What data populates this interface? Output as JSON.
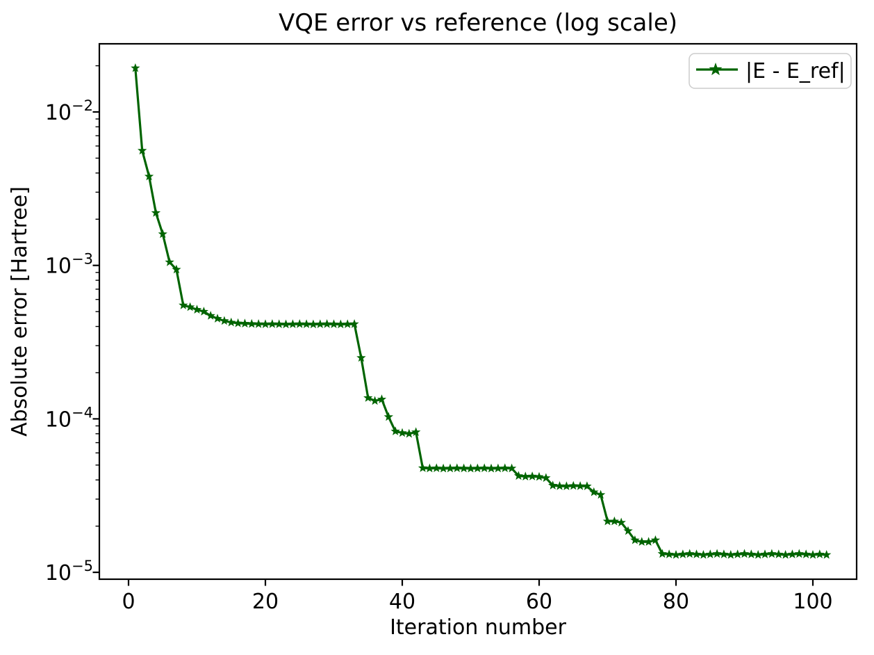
{
  "title": "VQE error vs reference (log scale)",
  "legend": {
    "label": "|E - E_ref|",
    "position": "upper right"
  },
  "axes": {
    "xlabel": "Iteration number",
    "ylabel": "Absolute error [Hartree]",
    "x_ticks": [
      0,
      20,
      40,
      60,
      80,
      100
    ],
    "y_ticks": [
      {
        "base": "10",
        "exp": "−2",
        "value": 0.01
      },
      {
        "base": "10",
        "exp": "−3",
        "value": 0.001
      },
      {
        "base": "10",
        "exp": "−4",
        "value": 0.0001
      },
      {
        "base": "10",
        "exp": "−5",
        "value": 1e-05
      }
    ]
  },
  "colors": {
    "series": "#006400",
    "axis": "#000000",
    "legend_border": "#cccccc",
    "background": "#ffffff"
  },
  "chart_data": {
    "type": "line",
    "title": "VQE error vs reference (log scale)",
    "xlabel": "Iteration number",
    "ylabel": "Absolute error [Hartree]",
    "yscale": "log",
    "grid": false,
    "legend_position": "upper right",
    "xlim": [
      -4.3,
      106.4
    ],
    "ylim": [
      9e-06,
      0.028
    ],
    "series": [
      {
        "name": "|E - E_ref|",
        "color": "#006400",
        "marker": "star",
        "x": [
          1,
          2,
          3,
          4,
          5,
          6,
          7,
          8,
          9,
          10,
          11,
          12,
          13,
          14,
          15,
          16,
          17,
          18,
          19,
          20,
          21,
          22,
          23,
          24,
          25,
          26,
          27,
          28,
          29,
          30,
          31,
          32,
          33,
          34,
          35,
          36,
          37,
          38,
          39,
          40,
          41,
          42,
          43,
          44,
          45,
          46,
          47,
          48,
          49,
          50,
          51,
          52,
          53,
          54,
          55,
          56,
          57,
          58,
          59,
          60,
          61,
          62,
          63,
          64,
          65,
          66,
          67,
          68,
          69,
          70,
          71,
          72,
          73,
          74,
          75,
          76,
          77,
          78,
          79,
          80,
          81,
          82,
          83,
          84,
          85,
          86,
          87,
          88,
          89,
          90,
          91,
          92,
          93,
          94,
          95,
          96,
          97,
          98,
          99,
          100,
          101,
          102
        ],
        "y": [
          0.0193,
          0.0056,
          0.0038,
          0.0022,
          0.0016,
          0.00105,
          0.00094,
          0.00055,
          0.000535,
          0.000515,
          0.0005,
          0.00047,
          0.00045,
          0.000435,
          0.000425,
          0.00042,
          0.000418,
          0.000416,
          0.000415,
          0.000414,
          0.000415,
          0.000414,
          0.000413,
          0.000414,
          0.000415,
          0.000414,
          0.000413,
          0.000414,
          0.000415,
          0.000414,
          0.000413,
          0.000414,
          0.000415,
          0.00025,
          0.000137,
          0.000131,
          0.000134,
          0.000103,
          8.3e-05,
          8.1e-05,
          8e-05,
          8.2e-05,
          4.78e-05,
          4.76e-05,
          4.77e-05,
          4.75e-05,
          4.76e-05,
          4.77e-05,
          4.76e-05,
          4.75e-05,
          4.76e-05,
          4.77e-05,
          4.75e-05,
          4.76e-05,
          4.77e-05,
          4.76e-05,
          4.25e-05,
          4.21e-05,
          4.22e-05,
          4.19e-05,
          4.12e-05,
          3.68e-05,
          3.65e-05,
          3.64e-05,
          3.66e-05,
          3.65e-05,
          3.64e-05,
          3.33e-05,
          3.2e-05,
          2.15e-05,
          2.15e-05,
          2.11e-05,
          1.86e-05,
          1.62e-05,
          1.58e-05,
          1.58e-05,
          1.62e-05,
          1.32e-05,
          1.31e-05,
          1.3e-05,
          1.31e-05,
          1.32e-05,
          1.31e-05,
          1.3e-05,
          1.31e-05,
          1.32e-05,
          1.31e-05,
          1.3e-05,
          1.31e-05,
          1.32e-05,
          1.31e-05,
          1.3e-05,
          1.31e-05,
          1.32e-05,
          1.31e-05,
          1.3e-05,
          1.31e-05,
          1.32e-05,
          1.31e-05,
          1.3e-05,
          1.31e-05,
          1.3e-05
        ]
      }
    ]
  }
}
